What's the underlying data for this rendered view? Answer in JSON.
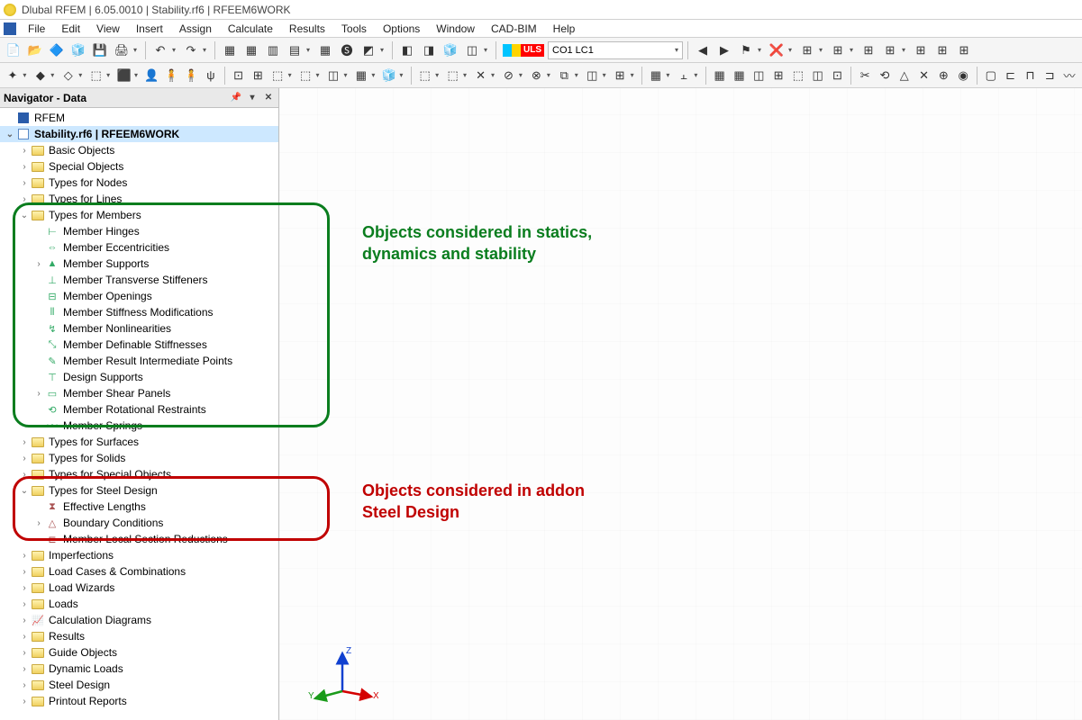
{
  "window": {
    "title": "Dlubal RFEM | 6.05.0010 | Stability.rf6 | RFEEM6WORK"
  },
  "menu": [
    "File",
    "Edit",
    "View",
    "Insert",
    "Assign",
    "Calculate",
    "Results",
    "Tools",
    "Options",
    "Window",
    "CAD-BIM",
    "Help"
  ],
  "toolbar_row1": {
    "groups": [
      [
        "📄",
        "📂",
        "🔷",
        "🧊",
        "💾",
        "🖨",
        "▾"
      ],
      [
        "↶",
        "▾",
        "↷",
        "▾"
      ],
      [
        "▦",
        "▦",
        "▥",
        "▤",
        "▾",
        "▦",
        "🅢",
        "◩",
        "▾"
      ],
      [
        "◧",
        "◨",
        "🧊",
        "◫",
        "▾"
      ]
    ],
    "uls_label": "ULS",
    "lc_label": "CO1   LC1",
    "right": [
      "◀",
      "▶",
      "⚑",
      "▾",
      "❌",
      "▾",
      "⊞",
      "▾",
      "⊞",
      "▾",
      "⊞",
      "⊞",
      "▾",
      "⊞",
      "⊞",
      "⊞"
    ]
  },
  "toolbar_row2": {
    "groups": [
      [
        "✦",
        "▾",
        "◆",
        "▾",
        "◇",
        "▾",
        "⬚",
        "▾",
        "⬛",
        "▾",
        "👤",
        "🧍",
        "🧍",
        "ψ"
      ],
      [
        "⊡",
        "⊞",
        "⬚",
        "▾",
        "⬚",
        "▾",
        "◫",
        "▾",
        "▦",
        "▿",
        "🧊",
        "▾"
      ],
      [
        "⬚",
        "▾",
        "⬚",
        "▾",
        "✕",
        "▾",
        "⊘",
        "▾",
        "⊗",
        "▾",
        "⧉",
        "▾",
        "◫",
        "▾",
        "⊞",
        "▾"
      ],
      [
        "▦",
        "▾",
        "⫠",
        "▾"
      ],
      [
        "▦",
        "▦",
        "◫",
        "⊞",
        "⬚",
        "◫",
        "⊡"
      ],
      [
        "✂",
        "⟲",
        "△",
        "✕",
        "⊕",
        "◉"
      ],
      [
        "▢",
        "⊏",
        "⊓",
        "⊐",
        "〰"
      ]
    ]
  },
  "navigator": {
    "title": "Navigator - Data",
    "root": "RFEM",
    "file": "Stability.rf6 | RFEEM6WORK",
    "top_folders": [
      "Basic Objects",
      "Special Objects",
      "Types for Nodes",
      "Types for Lines"
    ],
    "members_folder": "Types for Members",
    "members": [
      "Member Hinges",
      "Member Eccentricities",
      "Member Supports",
      "Member Transverse Stiffeners",
      "Member Openings",
      "Member Stiffness Modifications",
      "Member Nonlinearities",
      "Member Definable Stiffnesses",
      "Member Result Intermediate Points",
      "Design Supports",
      "Member Shear Panels",
      "Member Rotational Restraints",
      "Member Springs"
    ],
    "mid_folders": [
      "Types for Surfaces",
      "Types for Solids",
      "Types for Special Objects"
    ],
    "steel_folder": "Types for Steel Design",
    "steel_items": [
      "Effective Lengths",
      "Boundary Conditions",
      "Member Local Section Reductions"
    ],
    "bottom_folders": [
      "Imperfections",
      "Load Cases & Combinations",
      "Load Wizards",
      "Loads",
      "Calculation Diagrams",
      "Results",
      "Guide Objects",
      "Dynamic Loads",
      "Steel Design",
      "Printout Reports"
    ]
  },
  "annotations": {
    "green": {
      "text1": "Objects considered in statics,",
      "text2": "dynamics and stability",
      "color": "#0a7d1e"
    },
    "red": {
      "text1": "Objects considered in addon",
      "text2": "Steel Design",
      "color": "#c00000"
    }
  },
  "axis": {
    "x": "X",
    "y": "Y",
    "z": "Z",
    "x_color": "#d40000",
    "y_color": "#1a9b1a",
    "z_color": "#1040d0"
  }
}
